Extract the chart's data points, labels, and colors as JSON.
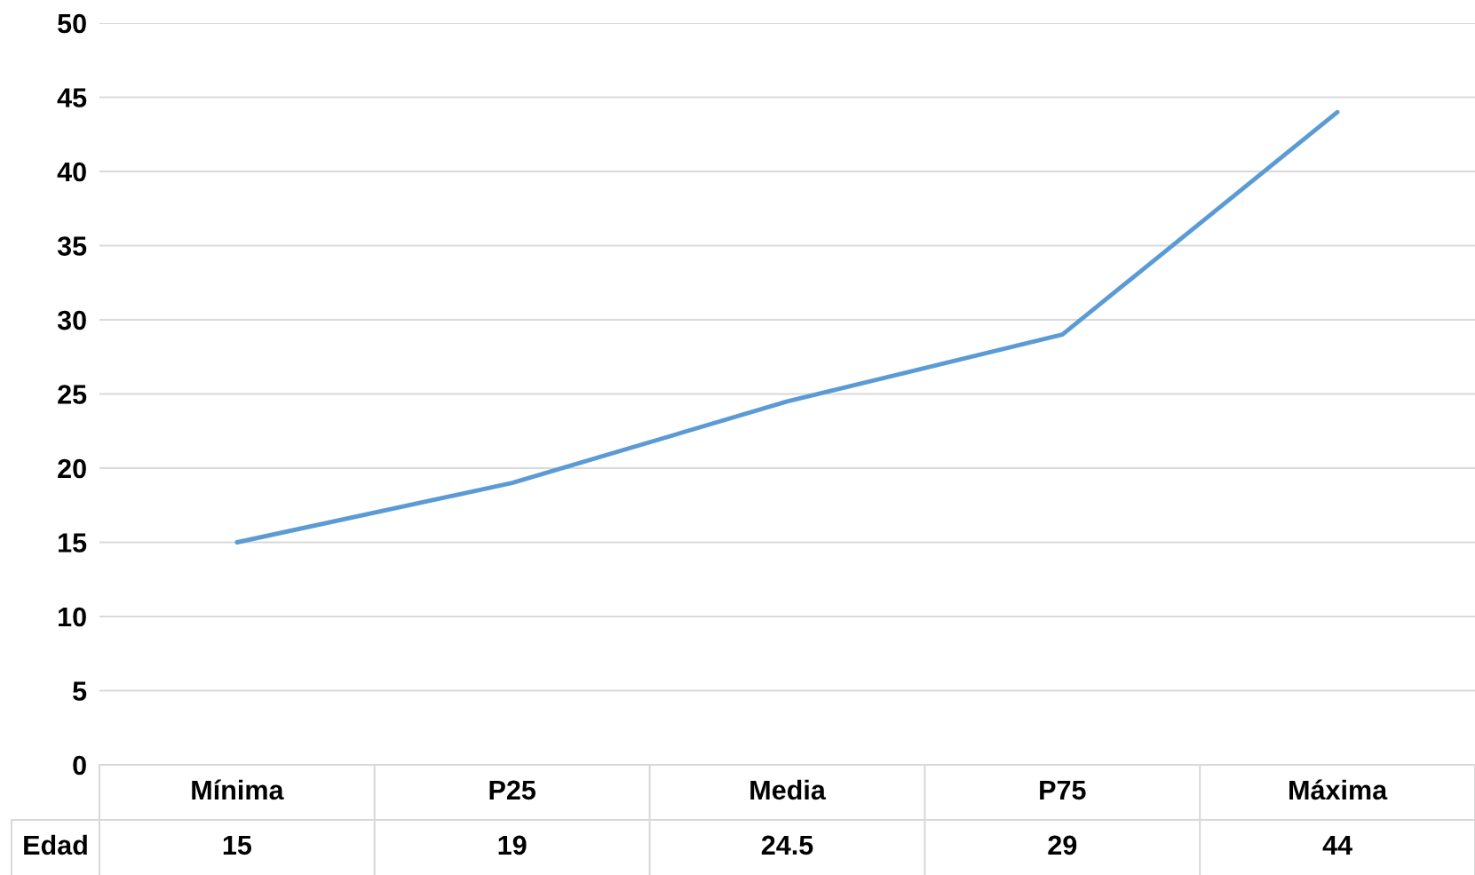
{
  "chart_data": {
    "type": "line",
    "categories": [
      "Mínima",
      "P25",
      "Media",
      "P75",
      "Máxima"
    ],
    "series": [
      {
        "name": "Edad",
        "color": "#5b9bd5",
        "values": [
          15,
          19,
          24.5,
          29,
          44
        ]
      }
    ],
    "ylim": [
      0,
      50
    ],
    "yticks": [
      0,
      5,
      10,
      15,
      20,
      25,
      30,
      35,
      40,
      45,
      50
    ],
    "grid": "y",
    "data_labels": true,
    "marker": "none",
    "line_style": "solid"
  }
}
